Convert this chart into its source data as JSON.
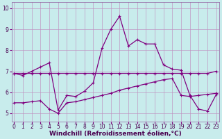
{
  "xlabel": "Windchill (Refroidissement éolien,°C)",
  "bg_color": "#c8ecec",
  "grid_color": "#c090c0",
  "line_color": "#800080",
  "x_ticks": [
    0,
    1,
    2,
    3,
    4,
    5,
    6,
    7,
    8,
    9,
    10,
    11,
    12,
    13,
    14,
    15,
    16,
    17,
    18,
    19,
    20,
    21,
    22,
    23
  ],
  "ylim": [
    4.6,
    10.3
  ],
  "xlim": [
    -0.3,
    23.3
  ],
  "series1_x": [
    0,
    1,
    2,
    3,
    4,
    5,
    6,
    7,
    8,
    9,
    10,
    11,
    12,
    13,
    14,
    15,
    16,
    17,
    18,
    19,
    20,
    21,
    22,
    23
  ],
  "series1_y": [
    6.9,
    6.8,
    7.0,
    7.2,
    7.4,
    5.15,
    5.85,
    5.8,
    6.05,
    6.45,
    8.1,
    9.0,
    9.62,
    8.2,
    8.5,
    8.3,
    8.3,
    7.3,
    7.1,
    7.05,
    5.85,
    5.2,
    5.1,
    5.9
  ],
  "series2_x": [
    0,
    1,
    2,
    3,
    4,
    5,
    6,
    7,
    8,
    9,
    10,
    11,
    12,
    13,
    14,
    15,
    16,
    17,
    18,
    19,
    20,
    21,
    22,
    23
  ],
  "series2_y": [
    6.9,
    6.9,
    6.9,
    6.9,
    6.9,
    6.9,
    6.9,
    6.9,
    6.9,
    6.9,
    6.9,
    6.9,
    6.9,
    6.9,
    6.9,
    6.9,
    6.9,
    6.9,
    6.9,
    6.9,
    6.9,
    6.9,
    6.9,
    7.0
  ],
  "series3_x": [
    0,
    1,
    2,
    3,
    4,
    5,
    6,
    7,
    8,
    9,
    10,
    11,
    12,
    13,
    14,
    15,
    16,
    17,
    18,
    19,
    20,
    21,
    22,
    23
  ],
  "series3_y": [
    5.5,
    5.5,
    5.55,
    5.6,
    5.2,
    5.0,
    5.5,
    5.55,
    5.65,
    5.75,
    5.85,
    5.95,
    6.1,
    6.2,
    6.3,
    6.4,
    6.5,
    6.6,
    6.65,
    5.85,
    5.8,
    5.85,
    5.9,
    5.95
  ],
  "marker_size": 3,
  "line_width": 0.9,
  "xlabel_fontsize": 6.5,
  "tick_fontsize": 5.5
}
